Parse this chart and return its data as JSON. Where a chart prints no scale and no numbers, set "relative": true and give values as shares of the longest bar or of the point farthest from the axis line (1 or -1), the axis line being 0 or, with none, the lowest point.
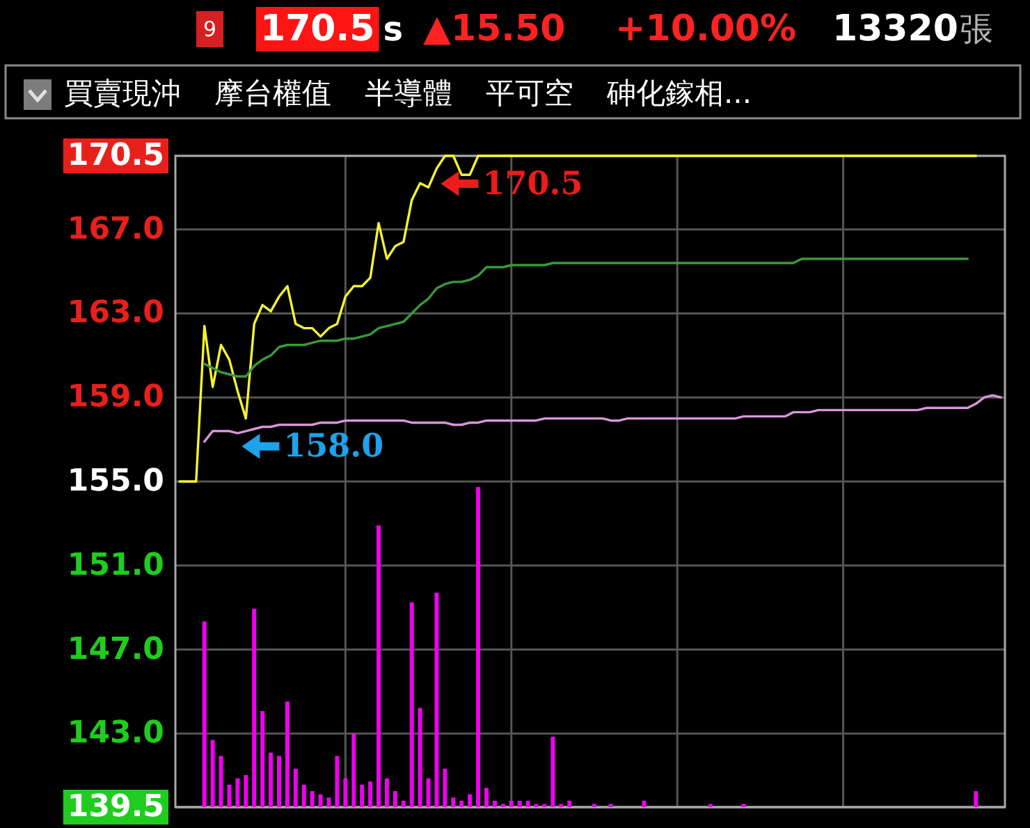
{
  "chart_data": [
    {
      "type": "line",
      "categories": [
        null,
        null,
        null,
        null,
        null,
        null,
        null,
        null,
        null,
        null,
        null,
        null,
        null,
        null,
        null,
        null,
        null,
        null,
        null,
        null,
        null,
        null,
        null,
        null,
        null,
        null,
        null,
        null,
        null,
        null,
        null,
        null,
        null,
        null,
        null,
        null,
        null,
        null,
        null,
        null,
        null,
        null,
        null,
        null,
        null,
        null,
        null,
        null,
        null,
        null,
        null,
        null,
        null,
        null,
        null,
        null,
        null,
        null,
        null,
        null,
        null,
        null,
        null,
        null,
        null,
        null,
        null,
        null,
        null,
        null,
        null,
        null,
        null,
        null,
        null,
        null,
        null,
        null,
        null,
        null,
        null,
        null,
        null,
        null,
        null,
        null,
        null,
        null,
        null,
        null,
        null,
        null,
        null,
        null,
        null,
        null,
        null,
        null,
        null,
        null
      ],
      "series": [
        {
          "color": "#f4f430",
          "values": [
            155,
            155,
            155,
            162.4,
            159.5,
            161.5,
            160.8,
            159.3,
            158.0,
            162.5,
            163.4,
            163.1,
            163.8,
            164.3,
            162.5,
            162.3,
            162.3,
            161.9,
            162.3,
            162.5,
            163.8,
            164.3,
            164.3,
            164.7,
            167.3,
            165.6,
            166.2,
            166.4,
            168.4,
            169.2,
            169.0,
            169.9,
            170.5,
            170.5,
            169.6,
            169.6,
            170.5,
            170.5,
            170.5,
            170.5,
            170.5,
            170.5,
            170.5,
            170.5,
            170.5,
            170.5,
            170.5,
            170.5,
            170.5,
            170.5,
            170.5,
            170.5,
            170.5,
            170.5,
            170.5,
            170.5,
            170.5,
            170.5,
            170.5,
            170.5,
            170.5,
            170.5,
            170.5,
            170.5,
            170.5,
            170.5,
            170.5,
            170.5,
            170.5,
            170.5,
            170.5,
            170.5,
            170.5,
            170.5,
            170.5,
            170.5,
            170.5,
            170.5,
            170.5,
            170.5,
            170.5,
            170.5,
            170.5,
            170.5,
            170.5,
            170.5,
            170.5,
            170.5,
            170.5,
            170.5,
            170.5,
            170.5,
            170.5,
            170.5,
            170.5,
            170.5,
            170.5,
            null,
            null,
            null
          ]
        },
        {
          "color": "#3a9a3a",
          "values": [
            null,
            null,
            null,
            160.6,
            160.4,
            160.2,
            160.1,
            160.0,
            160.0,
            160.5,
            160.8,
            161.0,
            161.4,
            161.5,
            161.5,
            161.5,
            161.6,
            161.7,
            161.7,
            161.7,
            161.8,
            161.8,
            161.9,
            162.0,
            162.3,
            162.4,
            162.5,
            162.6,
            163.0,
            163.4,
            163.7,
            164.2,
            164.4,
            164.5,
            164.5,
            164.6,
            164.8,
            165.2,
            165.2,
            165.2,
            165.3,
            165.3,
            165.3,
            165.3,
            165.3,
            165.4,
            165.4,
            165.4,
            165.4,
            165.4,
            165.4,
            165.4,
            165.4,
            165.4,
            165.4,
            165.4,
            165.4,
            165.4,
            165.4,
            165.4,
            165.4,
            165.4,
            165.4,
            165.4,
            165.4,
            165.4,
            165.4,
            165.4,
            165.4,
            165.4,
            165.4,
            165.4,
            165.4,
            165.4,
            165.4,
            165.6,
            165.6,
            165.6,
            165.6,
            165.6,
            165.6,
            165.6,
            165.6,
            165.6,
            165.6,
            165.6,
            165.6,
            165.6,
            165.6,
            165.6,
            165.6,
            165.6,
            165.6,
            165.6,
            165.6,
            165.6,
            null,
            null,
            null,
            null
          ]
        },
        {
          "color": "#d896d8",
          "values": [
            null,
            null,
            null,
            156.9,
            157.4,
            157.4,
            157.4,
            157.3,
            157.4,
            157.5,
            157.6,
            157.6,
            157.7,
            157.7,
            157.7,
            157.7,
            157.7,
            157.8,
            157.8,
            157.8,
            157.9,
            157.9,
            157.9,
            157.9,
            157.9,
            157.9,
            157.9,
            157.9,
            157.8,
            157.8,
            157.8,
            157.8,
            157.8,
            157.7,
            157.7,
            157.8,
            157.8,
            157.9,
            157.9,
            157.9,
            157.9,
            157.9,
            157.9,
            157.9,
            158.0,
            158.0,
            158.0,
            158.0,
            158.0,
            158.0,
            158.0,
            158.0,
            157.9,
            157.9,
            158.0,
            158.0,
            158.0,
            158.0,
            158.0,
            158.0,
            158.0,
            158.0,
            158.0,
            158.0,
            158.0,
            158.0,
            158.0,
            158.0,
            158.1,
            158.1,
            158.1,
            158.1,
            158.1,
            158.1,
            158.3,
            158.3,
            158.3,
            158.4,
            158.4,
            158.4,
            158.4,
            158.4,
            158.4,
            158.4,
            158.4,
            158.4,
            158.4,
            158.4,
            158.4,
            158.4,
            158.5,
            158.5,
            158.5,
            158.5,
            158.5,
            158.5,
            158.7,
            159.0,
            159.1,
            159.0
          ]
        }
      ],
      "ylim": [
        139.5,
        170.5
      ],
      "yticks": [
        139.5,
        {
          "value": 143,
          "label": "143.0"
        },
        {
          "value": 147,
          "label": "147.0"
        },
        {
          "value": 151,
          "label": "151.0"
        },
        {
          "value": 155,
          "label": "155.0"
        },
        {
          "value": 159,
          "label": "159.0"
        },
        {
          "value": 163,
          "label": "163.0"
        },
        {
          "value": 167,
          "label": "167.0"
        },
        170.5
      ],
      "tick_labels": "y",
      "grid": true,
      "annotations": [
        "9",
        "170.5",
        "s",
        "▲15.50",
        "+10.00%",
        "13320",
        "張",
        "買賣現沖",
        "摩台權值",
        "半導體",
        "平可空",
        "砷化鎵相...",
        {
          "text": "170.5",
          "y": 170.5
        },
        {
          "text": "158.0",
          "y": 158.0
        }
      ]
    },
    {
      "type": "bar",
      "relative": true,
      "color": "#f000f0",
      "categories": [
        null,
        null,
        null,
        null,
        null,
        null,
        null,
        null,
        null,
        null,
        null,
        null,
        null,
        null,
        null,
        null,
        null,
        null,
        null,
        null,
        null,
        null,
        null,
        null,
        null,
        null,
        null,
        null,
        null,
        null,
        null,
        null,
        null,
        null,
        null,
        null,
        null,
        null,
        null,
        null,
        null,
        null,
        null,
        null,
        null,
        null,
        null,
        null,
        null,
        null,
        null,
        null,
        null,
        null,
        null,
        null,
        null,
        null,
        null,
        null,
        null,
        null,
        null,
        null,
        null,
        null,
        null,
        null,
        null,
        null,
        null,
        null,
        null,
        null,
        null,
        null,
        null,
        null,
        null,
        null,
        null,
        null,
        null,
        null,
        null,
        null,
        null,
        null,
        null,
        null,
        null,
        null,
        null,
        null,
        null,
        null,
        null,
        null,
        null,
        null
      ],
      "values": [
        null,
        null,
        null,
        0.58,
        0.21,
        0.16,
        0.07,
        0.09,
        0.1,
        0.62,
        0.3,
        0.17,
        0.16,
        0.33,
        0.12,
        0.07,
        0.05,
        0.04,
        0.03,
        0.16,
        0.09,
        0.23,
        0.07,
        0.08,
        0.88,
        0.09,
        0.05,
        0.02,
        0.64,
        0.31,
        0.09,
        0.67,
        0.12,
        0.03,
        0.02,
        0.04,
        1,
        0.06,
        0.02,
        0.01,
        0.02,
        0.02,
        0.02,
        0.01,
        0.01,
        0.22,
        0.01,
        0.02,
        null,
        null,
        0.01,
        null,
        0.01,
        null,
        null,
        null,
        0.02,
        null,
        null,
        null,
        null,
        null,
        null,
        null,
        0.01,
        null,
        null,
        null,
        0.01,
        null,
        null,
        null,
        null,
        null,
        null,
        null,
        null,
        null,
        null,
        null,
        null,
        null,
        null,
        null,
        null,
        null,
        null,
        null,
        null,
        null,
        null,
        null,
        null,
        null,
        null,
        null,
        0.05,
        null,
        null,
        null
      ]
    }
  ]
}
